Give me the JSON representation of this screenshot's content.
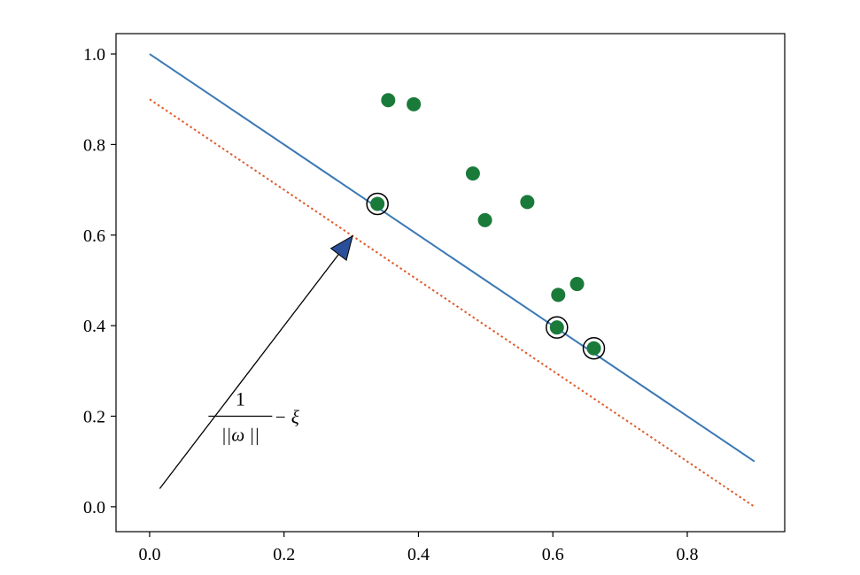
{
  "chart_data": {
    "type": "scatter",
    "title": "",
    "xlabel": "",
    "ylabel": "",
    "xlim": [
      -0.05,
      0.945
    ],
    "ylim": [
      -0.055,
      1.045
    ],
    "grid": false,
    "x_ticks": [
      "0.0",
      "0.2",
      "0.4",
      "0.6",
      "0.8"
    ],
    "x_tick_values": [
      0.0,
      0.2,
      0.4,
      0.6,
      0.8
    ],
    "y_ticks": [
      "0.0",
      "0.2",
      "0.4",
      "0.6",
      "0.8",
      "1.0"
    ],
    "y_tick_values": [
      0.0,
      0.2,
      0.4,
      0.6,
      0.8,
      1.0
    ],
    "points": [
      {
        "x": 0.355,
        "y": 0.898
      },
      {
        "x": 0.393,
        "y": 0.889
      },
      {
        "x": 0.481,
        "y": 0.736
      },
      {
        "x": 0.562,
        "y": 0.673
      },
      {
        "x": 0.499,
        "y": 0.633
      },
      {
        "x": 0.339,
        "y": 0.669,
        "support": true
      },
      {
        "x": 0.608,
        "y": 0.468
      },
      {
        "x": 0.636,
        "y": 0.492
      },
      {
        "x": 0.606,
        "y": 0.396,
        "support": true
      },
      {
        "x": 0.661,
        "y": 0.35,
        "support": true
      }
    ],
    "lines": [
      {
        "style": "solid",
        "from": [
          0.0,
          1.0
        ],
        "to": [
          0.9,
          0.1
        ]
      },
      {
        "style": "dotted",
        "from": [
          0.0,
          0.9
        ],
        "to": [
          0.9,
          0.0
        ]
      }
    ],
    "arrow": {
      "from": [
        0.015,
        0.04
      ],
      "to": [
        0.302,
        0.598
      ]
    },
    "annotation": {
      "numerator": "1",
      "denominator": "||ω ||",
      "suffix": "− ξ",
      "anchor": [
        0.135,
        0.2
      ]
    },
    "colors": {
      "points": "#1a7a3a",
      "solid_line": "#3a78b5",
      "dotted_line": "#e05a2b",
      "arrow_head": "#2a4f9a",
      "support_ring": "#000000"
    }
  }
}
